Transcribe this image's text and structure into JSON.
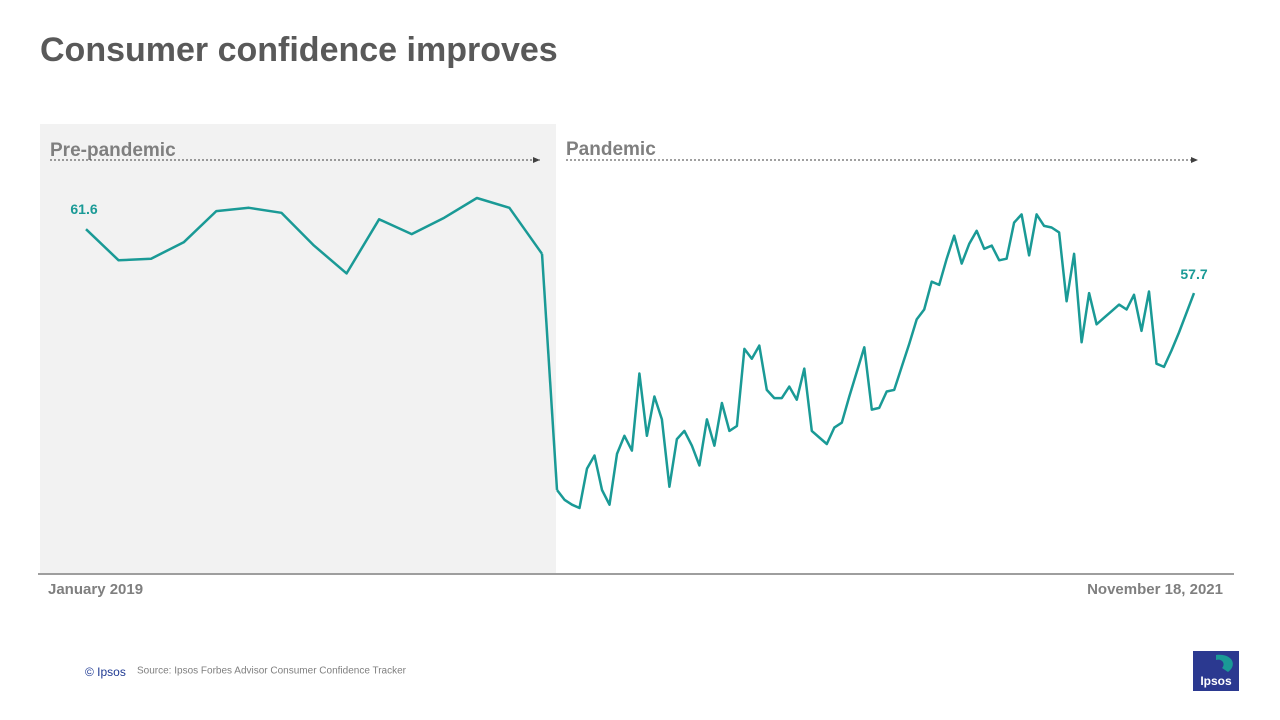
{
  "chart_data": {
    "type": "line",
    "title": "Consumer confidence improves",
    "xlabels": [
      "January 2019",
      "November 18, 2021"
    ],
    "color": "#1a9a96",
    "series": [
      {
        "name": "Pre-pandemic",
        "values": [
          61.6,
          59.7,
          59.8,
          60.8,
          62.7,
          62.9,
          62.6,
          60.6,
          58.9,
          62.2,
          61.3,
          62.3,
          63.5,
          62.9,
          60.1
        ]
      },
      {
        "name": "Pandemic",
        "values": [
          45.7,
          45.1,
          44.8,
          44.6,
          47.0,
          47.8,
          45.7,
          44.8,
          47.9,
          49.0,
          48.1,
          52.8,
          49.0,
          51.4,
          50.0,
          45.9,
          48.8,
          49.3,
          48.4,
          47.2,
          50.0,
          48.4,
          51.0,
          49.3,
          49.6,
          54.3,
          53.7,
          54.5,
          51.8,
          51.3,
          51.3,
          52.0,
          51.2,
          53.1,
          49.3,
          48.9,
          48.5,
          49.5,
          49.8,
          51.4,
          52.9,
          54.4,
          50.6,
          50.7,
          51.7,
          51.8,
          53.2,
          54.6,
          56.1,
          56.7,
          58.4,
          58.2,
          59.8,
          61.2,
          59.5,
          60.7,
          61.5,
          60.4,
          60.6,
          59.7,
          59.8,
          62.0,
          62.5,
          60.0,
          62.5,
          61.8,
          61.7,
          61.4,
          57.2,
          60.1,
          54.7,
          57.7,
          55.8,
          56.2,
          56.6,
          57.0,
          56.7,
          57.6,
          55.4,
          57.8,
          53.4,
          53.2,
          54.2,
          55.3,
          56.5,
          57.7
        ]
      }
    ]
  },
  "footer": {
    "copyright": "© Ipsos",
    "source": "Source: Ipsos Forbes Advisor Consumer Confidence Tracker",
    "logo": "Ipsos"
  }
}
